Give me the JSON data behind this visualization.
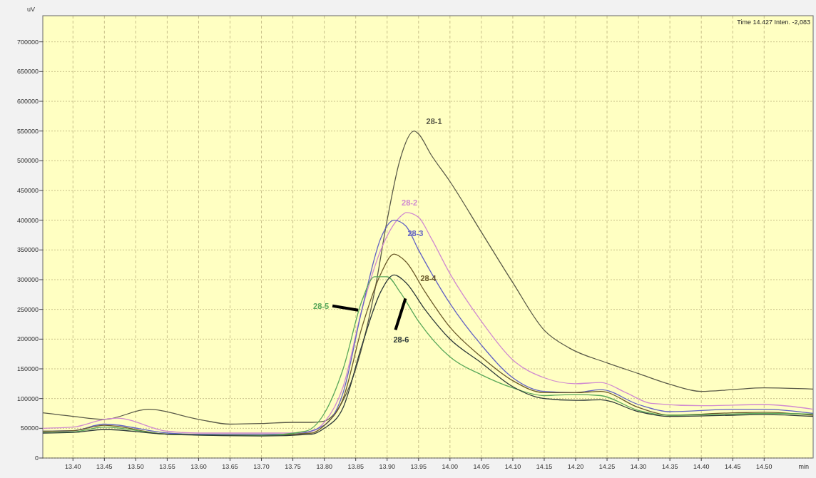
{
  "chart_data": {
    "type": "line",
    "xlabel": "min",
    "ylabel": "uV",
    "annotations": [
      "Time 14.427 Inten. -2,083"
    ],
    "xlim": [
      13.352,
      14.578
    ],
    "xticks": [
      {
        "value": 13.4,
        "label": "13.40"
      },
      13.45,
      {
        "value": 13.5,
        "label": "13.50"
      },
      13.55,
      {
        "value": 13.6,
        "label": "13.60"
      },
      13.65,
      {
        "value": 13.7,
        "label": "13.70"
      },
      13.75,
      {
        "value": 13.8,
        "label": "13.80"
      },
      13.85,
      {
        "value": 13.9,
        "label": "13.90"
      },
      13.95,
      {
        "value": 14.0,
        "label": "14.00"
      },
      14.05,
      {
        "value": 14.1,
        "label": "14.10"
      },
      14.15,
      {
        "value": 14.2,
        "label": "14.20"
      },
      14.25,
      {
        "value": 14.3,
        "label": "14.30"
      },
      14.35,
      {
        "value": 14.4,
        "label": "14.40"
      },
      14.45,
      {
        "value": 14.5,
        "label": "14.50"
      }
    ],
    "ylim": [
      0,
      744000
    ],
    "yticks": [
      0,
      50000,
      100000,
      150000,
      200000,
      250000,
      300000,
      350000,
      400000,
      450000,
      500000,
      550000,
      600000,
      650000,
      700000
    ],
    "grid": true,
    "marker": "none",
    "line_style": "solid",
    "series": [
      {
        "name": "28-1",
        "color": "#5a5a48",
        "x": [
          13.352,
          13.4,
          13.45,
          13.52,
          13.6,
          13.65,
          13.7,
          13.75,
          13.78,
          13.8,
          13.82,
          13.85,
          13.88,
          13.9,
          13.92,
          13.943,
          13.95,
          13.97,
          14.0,
          14.05,
          14.1,
          14.15,
          14.19,
          14.25,
          14.3,
          14.35,
          14.4,
          14.45,
          14.5,
          14.578
        ],
        "values": [
          76000,
          70000,
          65000,
          82000,
          65000,
          57000,
          58000,
          60000,
          60000,
          62000,
          80000,
          150000,
          280000,
          400000,
          500000,
          550000,
          545000,
          510000,
          465000,
          380000,
          295000,
          215000,
          185000,
          160000,
          142000,
          124000,
          112000,
          115000,
          118000,
          116000
        ]
      },
      {
        "name": "28-2",
        "color": "#d08ad0",
        "x": [
          13.352,
          13.4,
          13.45,
          13.47,
          13.55,
          13.6,
          13.75,
          13.78,
          13.8,
          13.83,
          13.86,
          13.89,
          13.92,
          13.931,
          13.95,
          13.97,
          14.0,
          14.05,
          14.1,
          14.15,
          14.2,
          14.24,
          14.28,
          14.32,
          14.4,
          14.5,
          14.578
        ],
        "values": [
          50000,
          52000,
          65000,
          67000,
          45000,
          42000,
          42000,
          45000,
          60000,
          120000,
          250000,
          350000,
          405000,
          413000,
          405000,
          370000,
          310000,
          230000,
          165000,
          135000,
          125000,
          127000,
          110000,
          92000,
          88000,
          90000,
          82000
        ]
      },
      {
        "name": "28-3",
        "color": "#6262c4",
        "x": [
          13.352,
          13.4,
          13.45,
          13.55,
          13.6,
          13.75,
          13.8,
          13.83,
          13.86,
          13.89,
          13.911,
          13.93,
          13.95,
          14.0,
          14.05,
          14.1,
          14.15,
          14.2,
          14.24,
          14.3,
          14.35,
          14.45,
          14.5,
          14.578
        ],
        "values": [
          45000,
          46000,
          57000,
          42000,
          40000,
          40000,
          55000,
          110000,
          250000,
          370000,
          400000,
          390000,
          350000,
          260000,
          190000,
          135000,
          112000,
          110000,
          115000,
          90000,
          78000,
          82000,
          82000,
          75000
        ]
      },
      {
        "name": "28-4",
        "color": "#6b5a2a",
        "x": [
          13.352,
          13.4,
          13.45,
          13.55,
          13.7,
          13.78,
          13.8,
          13.83,
          13.86,
          13.89,
          13.911,
          13.93,
          13.96,
          14.0,
          14.05,
          14.1,
          14.15,
          14.2,
          14.24,
          14.3,
          14.35,
          14.45,
          14.5,
          14.578
        ],
        "values": [
          45000,
          46000,
          55000,
          40000,
          38000,
          42000,
          55000,
          100000,
          220000,
          310000,
          343000,
          330000,
          280000,
          220000,
          170000,
          130000,
          110000,
          110000,
          112000,
          85000,
          72000,
          76000,
          77000,
          72000
        ]
      },
      {
        "name": "28-5",
        "color": "#5aa85a",
        "x": [
          13.352,
          13.4,
          13.45,
          13.55,
          13.7,
          13.77,
          13.8,
          13.83,
          13.86,
          13.88,
          13.9,
          13.92,
          13.95,
          14.0,
          14.05,
          14.1,
          14.15,
          14.2,
          14.24,
          14.3,
          14.35,
          14.45,
          14.5,
          14.578
        ],
        "values": [
          43000,
          44000,
          52000,
          40000,
          38000,
          45000,
          75000,
          150000,
          265000,
          305000,
          305000,
          280000,
          230000,
          170000,
          140000,
          118000,
          105000,
          107000,
          105000,
          80000,
          72000,
          74000,
          75000,
          74000
        ]
      },
      {
        "name": "28-6",
        "color": "#2e3a3a",
        "x": [
          13.352,
          13.4,
          13.45,
          13.55,
          13.7,
          13.78,
          13.8,
          13.83,
          13.86,
          13.89,
          13.911,
          13.93,
          13.96,
          14.0,
          14.05,
          14.1,
          14.15,
          14.2,
          14.24,
          14.3,
          14.35,
          14.45,
          14.5,
          14.578
        ],
        "values": [
          42000,
          43000,
          48000,
          40000,
          37000,
          40000,
          50000,
          85000,
          190000,
          280000,
          308000,
          295000,
          250000,
          200000,
          160000,
          120000,
          100000,
          97000,
          98000,
          78000,
          70000,
          72000,
          73000,
          70000
        ]
      }
    ]
  }
}
